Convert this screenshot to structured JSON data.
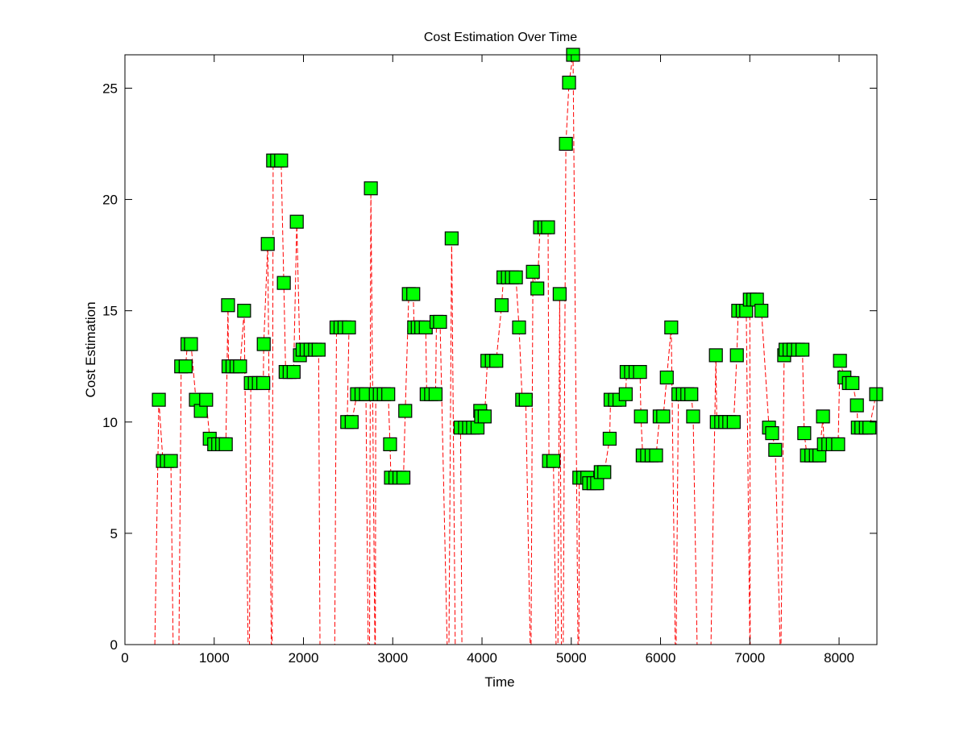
{
  "chart_data": {
    "type": "line",
    "title": "Cost Estimation Over Time",
    "xlabel": "Time",
    "ylabel": "Cost Estimation",
    "xlim": [
      0,
      8424
    ],
    "ylim": [
      0,
      26.5
    ],
    "xticks": [
      0,
      1000,
      2000,
      3000,
      4000,
      5000,
      6000,
      7000,
      8000
    ],
    "yticks": [
      0,
      5,
      10,
      15,
      20,
      25
    ],
    "grid": false,
    "line_color": "#ff0000",
    "line_style": "dashed",
    "marker": "square",
    "marker_face_color": "#00ff00",
    "marker_edge_color": "#000000",
    "points": [
      [
        335,
        0
      ],
      [
        380,
        11.0
      ],
      [
        425,
        8.25
      ],
      [
        470,
        8.25
      ],
      [
        515,
        8.25
      ],
      [
        540,
        0
      ],
      [
        605,
        0
      ],
      [
        630,
        12.5
      ],
      [
        680,
        12.5
      ],
      [
        700,
        13.5
      ],
      [
        740,
        13.5
      ],
      [
        795,
        11.0
      ],
      [
        850,
        10.5
      ],
      [
        910,
        11.0
      ],
      [
        950,
        9.25
      ],
      [
        1000,
        9.0
      ],
      [
        1045,
        9.0
      ],
      [
        1090,
        9.0
      ],
      [
        1130,
        9.0
      ],
      [
        1155,
        15.25
      ],
      [
        1160,
        12.5
      ],
      [
        1205,
        12.5
      ],
      [
        1250,
        12.5
      ],
      [
        1290,
        12.5
      ],
      [
        1335,
        15.0
      ],
      [
        1380,
        0
      ],
      [
        1395,
        0
      ],
      [
        1410,
        11.75
      ],
      [
        1455,
        11.75
      ],
      [
        1500,
        11.75
      ],
      [
        1550,
        11.75
      ],
      [
        1555,
        13.5
      ],
      [
        1600,
        18.0
      ],
      [
        1640,
        0
      ],
      [
        1650,
        0
      ],
      [
        1660,
        21.75
      ],
      [
        1705,
        21.75
      ],
      [
        1750,
        21.75
      ],
      [
        1780,
        16.25
      ],
      [
        1800,
        12.25
      ],
      [
        1845,
        12.25
      ],
      [
        1890,
        12.25
      ],
      [
        1925,
        19.0
      ],
      [
        1960,
        13.0
      ],
      [
        1990,
        13.25
      ],
      [
        2035,
        13.25
      ],
      [
        2080,
        13.25
      ],
      [
        2130,
        13.25
      ],
      [
        2170,
        13.25
      ],
      [
        2185,
        0
      ],
      [
        2350,
        0
      ],
      [
        2370,
        14.25
      ],
      [
        2415,
        14.25
      ],
      [
        2460,
        14.25
      ],
      [
        2510,
        14.25
      ],
      [
        2490,
        10.0
      ],
      [
        2540,
        10.0
      ],
      [
        2600,
        11.25
      ],
      [
        2650,
        11.25
      ],
      [
        2700,
        11.25
      ],
      [
        2725,
        0
      ],
      [
        2740,
        0
      ],
      [
        2755,
        20.5
      ],
      [
        2800,
        0
      ],
      [
        2805,
        0
      ],
      [
        2810,
        11.25
      ],
      [
        2855,
        11.25
      ],
      [
        2900,
        11.25
      ],
      [
        2950,
        11.25
      ],
      [
        2970,
        9.0
      ],
      [
        2980,
        7.5
      ],
      [
        3030,
        7.5
      ],
      [
        3075,
        7.5
      ],
      [
        3120,
        7.5
      ],
      [
        3140,
        10.5
      ],
      [
        3180,
        15.75
      ],
      [
        3230,
        15.75
      ],
      [
        3240,
        14.25
      ],
      [
        3280,
        14.25
      ],
      [
        3320,
        14.25
      ],
      [
        3370,
        14.25
      ],
      [
        3380,
        11.25
      ],
      [
        3430,
        11.25
      ],
      [
        3480,
        11.25
      ],
      [
        3490,
        14.5
      ],
      [
        3530,
        14.5
      ],
      [
        3610,
        0
      ],
      [
        3630,
        0
      ],
      [
        3660,
        18.25
      ],
      [
        3700,
        0
      ],
      [
        3775,
        0
      ],
      [
        3760,
        9.75
      ],
      [
        3810,
        9.75
      ],
      [
        3855,
        9.75
      ],
      [
        3900,
        9.75
      ],
      [
        3950,
        9.75
      ],
      [
        3980,
        10.5
      ],
      [
        3990,
        10.25
      ],
      [
        4030,
        10.25
      ],
      [
        4060,
        12.75
      ],
      [
        4110,
        12.75
      ],
      [
        4160,
        12.75
      ],
      [
        4220,
        15.25
      ],
      [
        4240,
        16.5
      ],
      [
        4290,
        16.5
      ],
      [
        4335,
        16.5
      ],
      [
        4380,
        16.5
      ],
      [
        4415,
        14.25
      ],
      [
        4450,
        11.0
      ],
      [
        4490,
        11.0
      ],
      [
        4540,
        0
      ],
      [
        4550,
        0
      ],
      [
        4570,
        16.75
      ],
      [
        4620,
        16.0
      ],
      [
        4650,
        18.75
      ],
      [
        4700,
        18.75
      ],
      [
        4740,
        18.75
      ],
      [
        4750,
        8.25
      ],
      [
        4800,
        8.25
      ],
      [
        4830,
        0
      ],
      [
        4850,
        0
      ],
      [
        4870,
        15.75
      ],
      [
        4890,
        0
      ],
      [
        4910,
        0
      ],
      [
        4940,
        22.5
      ],
      [
        4975,
        25.25
      ],
      [
        5020,
        26.5
      ],
      [
        5075,
        0
      ],
      [
        5085,
        0
      ],
      [
        5090,
        7.5
      ],
      [
        5135,
        7.5
      ],
      [
        5180,
        7.5
      ],
      [
        5200,
        7.25
      ],
      [
        5250,
        7.25
      ],
      [
        5290,
        7.25
      ],
      [
        5330,
        7.75
      ],
      [
        5370,
        7.75
      ],
      [
        5430,
        9.25
      ],
      [
        5440,
        11.0
      ],
      [
        5490,
        11.0
      ],
      [
        5540,
        11.0
      ],
      [
        5610,
        11.25
      ],
      [
        5620,
        12.25
      ],
      [
        5670,
        12.25
      ],
      [
        5720,
        12.25
      ],
      [
        5770,
        12.25
      ],
      [
        5780,
        10.25
      ],
      [
        5800,
        8.5
      ],
      [
        5850,
        8.5
      ],
      [
        5900,
        8.5
      ],
      [
        5950,
        8.5
      ],
      [
        5990,
        10.25
      ],
      [
        6030,
        10.25
      ],
      [
        6070,
        12.0
      ],
      [
        6120,
        14.25
      ],
      [
        6165,
        0
      ],
      [
        6175,
        0
      ],
      [
        6200,
        11.25
      ],
      [
        6250,
        11.25
      ],
      [
        6300,
        11.25
      ],
      [
        6345,
        11.25
      ],
      [
        6365,
        10.25
      ],
      [
        6410,
        0
      ],
      [
        6565,
        0
      ],
      [
        6620,
        13.0
      ],
      [
        6630,
        10.0
      ],
      [
        6680,
        10.0
      ],
      [
        6725,
        10.0
      ],
      [
        6770,
        10.0
      ],
      [
        6820,
        10.0
      ],
      [
        6855,
        13.0
      ],
      [
        6870,
        15.0
      ],
      [
        6920,
        15.0
      ],
      [
        6960,
        15.0
      ],
      [
        7000,
        0
      ],
      [
        7005,
        0
      ],
      [
        7000,
        15.5
      ],
      [
        7040,
        15.5
      ],
      [
        7080,
        15.5
      ],
      [
        7130,
        15.0
      ],
      [
        7215,
        9.75
      ],
      [
        7250,
        9.5
      ],
      [
        7285,
        8.75
      ],
      [
        7340,
        0
      ],
      [
        7350,
        0
      ],
      [
        7385,
        13.0
      ],
      [
        7400,
        13.25
      ],
      [
        7445,
        13.25
      ],
      [
        7490,
        13.25
      ],
      [
        7540,
        13.25
      ],
      [
        7590,
        13.25
      ],
      [
        7610,
        9.5
      ],
      [
        7640,
        8.5
      ],
      [
        7690,
        8.5
      ],
      [
        7740,
        8.5
      ],
      [
        7780,
        8.5
      ],
      [
        7820,
        10.25
      ],
      [
        7830,
        9.0
      ],
      [
        7880,
        9.0
      ],
      [
        7930,
        9.0
      ],
      [
        7990,
        9.0
      ],
      [
        8010,
        12.75
      ],
      [
        8060,
        12.0
      ],
      [
        8110,
        11.75
      ],
      [
        8150,
        11.75
      ],
      [
        8200,
        10.75
      ],
      [
        8210,
        9.75
      ],
      [
        8250,
        9.75
      ],
      [
        8300,
        9.75
      ],
      [
        8340,
        9.75
      ],
      [
        8415,
        11.25
      ]
    ]
  }
}
